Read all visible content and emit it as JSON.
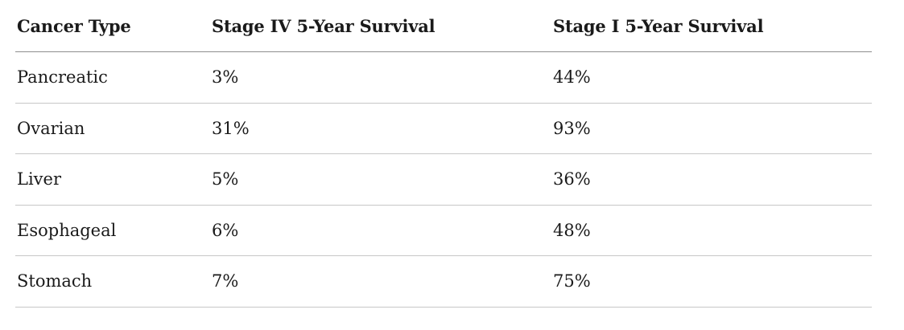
{
  "colors": {
    "background": "#ffffff",
    "text": "#1a1a1a",
    "header_rule": "#8e8e8e",
    "row_rule": "#c7c7c7"
  },
  "chart_data": {
    "type": "table",
    "columns": [
      "Cancer Type",
      "Stage IV 5-Year Survival",
      "Stage I 5-Year Survival"
    ],
    "rows": [
      [
        "Pancreatic",
        "3%",
        "44%"
      ],
      [
        "Ovarian",
        "31%",
        "93%"
      ],
      [
        "Liver",
        "5%",
        "36%"
      ],
      [
        "Esophageal",
        "6%",
        "48%"
      ],
      [
        "Stomach",
        "7%",
        "75%"
      ]
    ],
    "layout": {
      "grid": "horizontal-rules-only",
      "header_rule_darker_than_row_rules": true,
      "column_alignment": [
        "left",
        "left",
        "left"
      ]
    }
  }
}
